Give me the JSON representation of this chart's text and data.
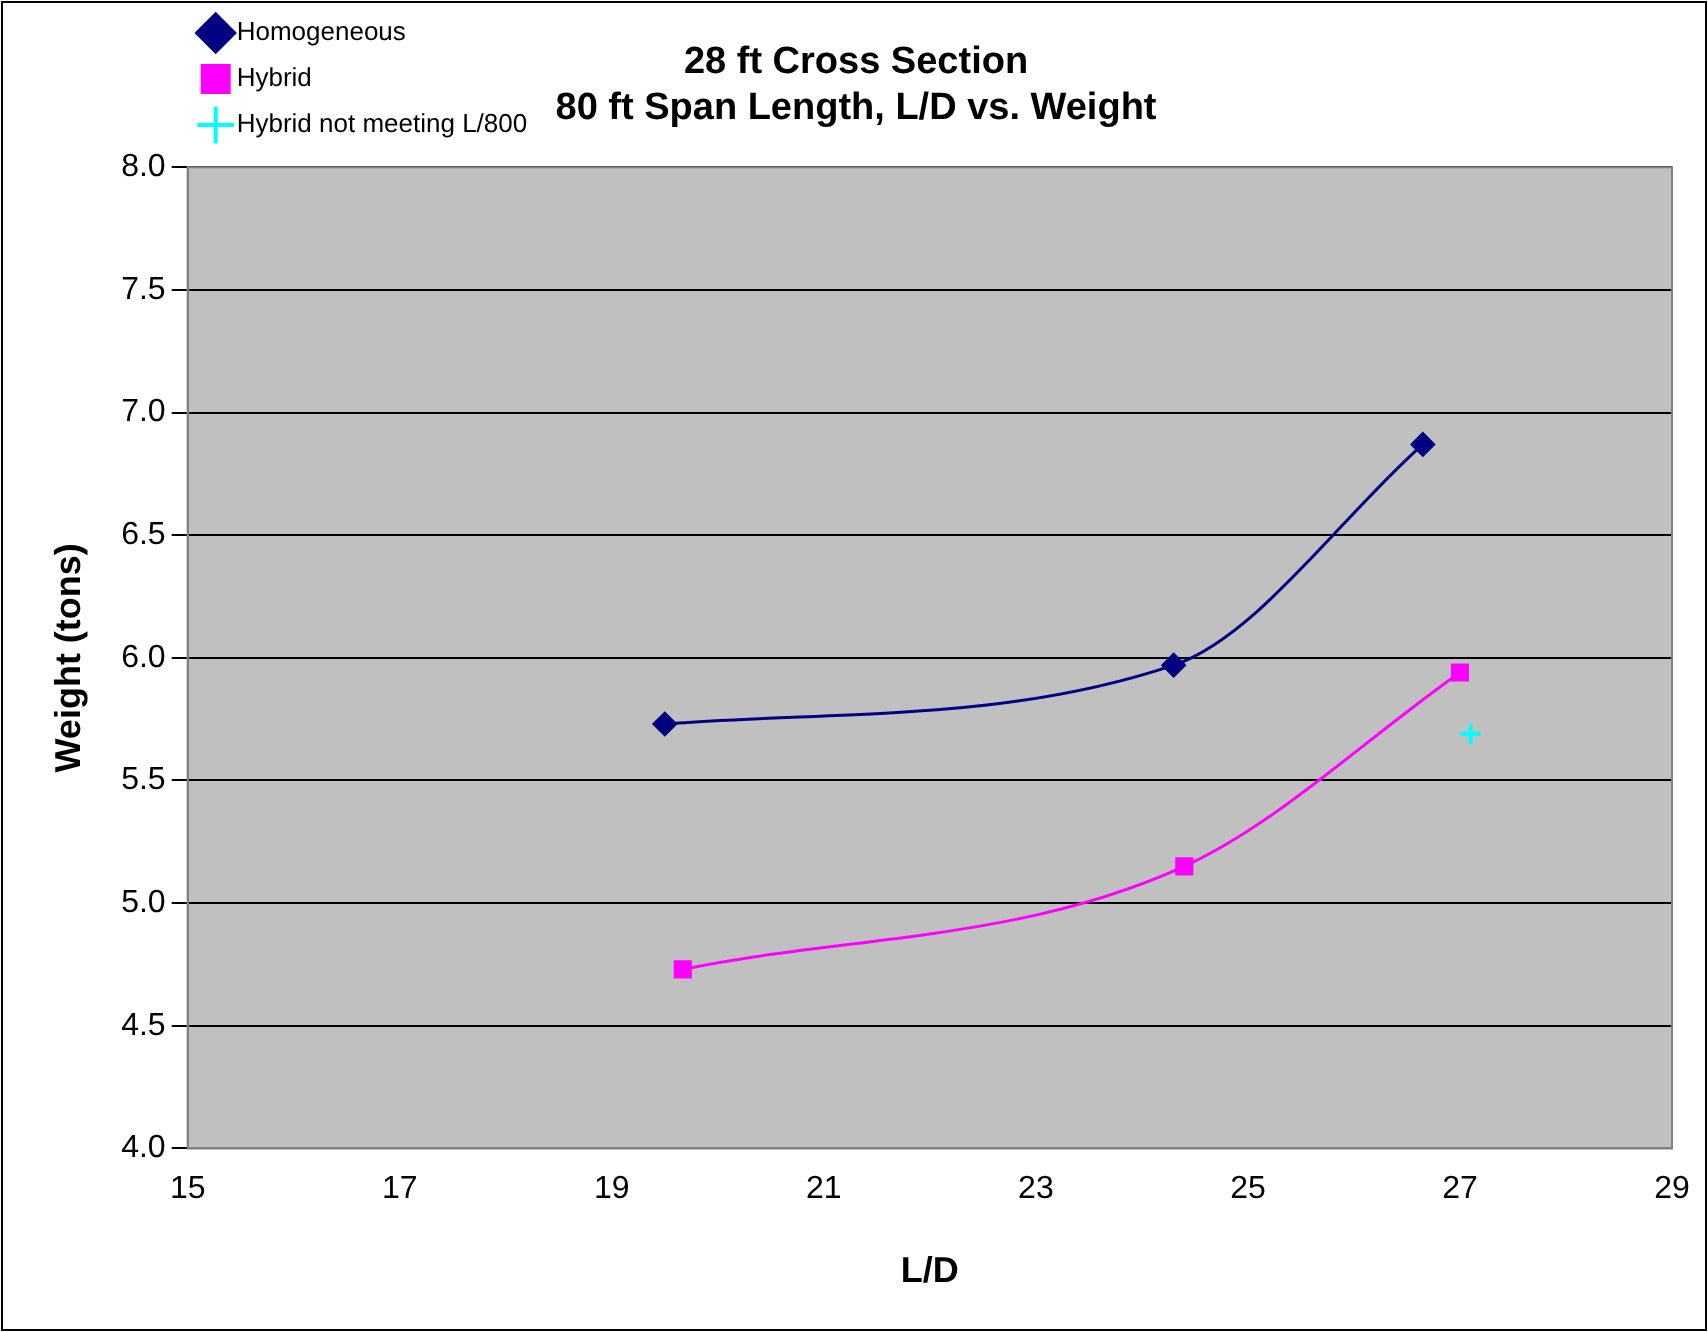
{
  "chart_data": {
    "type": "line",
    "title": "28 ft Cross Section\n80 ft Span Length, L/D vs. Weight",
    "xlabel": "L/D",
    "ylabel": "Weight (tons)",
    "xlim": [
      15,
      29
    ],
    "xticks": [
      15,
      17,
      19,
      21,
      23,
      25,
      27,
      29
    ],
    "ylim": [
      4,
      8
    ],
    "yticks": [
      {
        "value": 4,
        "label": "4.0"
      },
      {
        "value": 4.5,
        "label": "4.5"
      },
      {
        "value": 5,
        "label": "5.0"
      },
      {
        "value": 5.5,
        "label": "5.5"
      },
      {
        "value": 6,
        "label": "6.0"
      },
      {
        "value": 6.5,
        "label": "6.5"
      },
      {
        "value": 7,
        "label": "7.0"
      },
      {
        "value": 7.5,
        "label": "7.5"
      },
      {
        "value": 8,
        "label": "8.0"
      }
    ],
    "grid": "y",
    "legend": "top left",
    "series": [
      {
        "name": "Homogeneous",
        "color": "#000080",
        "marker": "diamond",
        "x": [
          19.5,
          24.3,
          26.65
        ],
        "values": [
          5.73,
          5.97,
          6.87
        ]
      },
      {
        "name": "Hybrid",
        "color": "#ff00ff",
        "marker": "square",
        "x": [
          19.67,
          24.4,
          27.0
        ],
        "values": [
          4.73,
          5.15,
          5.94
        ]
      },
      {
        "name": "Hybrid not meeting L/800",
        "type": "scatter",
        "color": "#00ffff",
        "marker": "cross",
        "x": [
          27.1
        ],
        "values": [
          5.69
        ]
      }
    ]
  }
}
